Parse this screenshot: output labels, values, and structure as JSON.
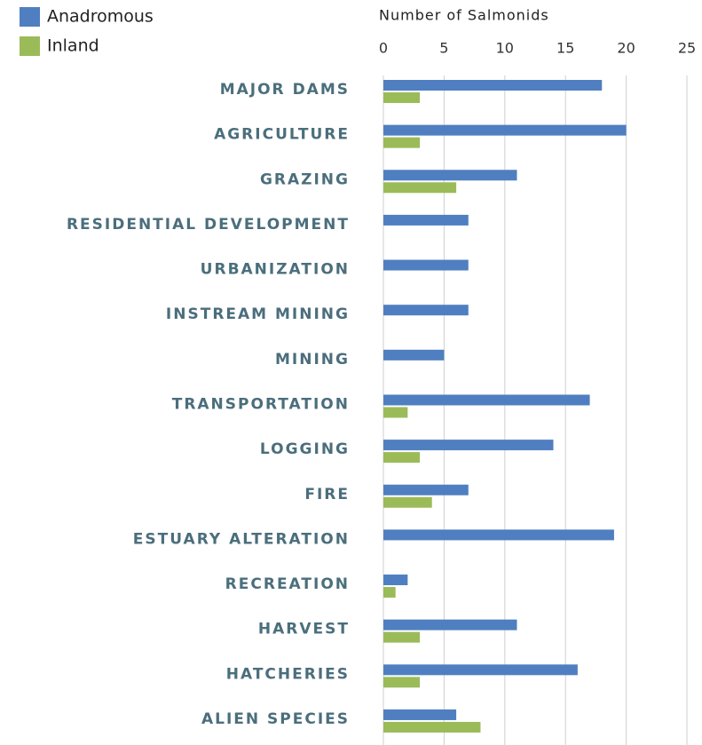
{
  "chart_data": {
    "type": "hbar",
    "xlabel": "Number of Salmonids",
    "categories": [
      "MAJOR DAMS",
      "AGRICULTURE",
      "GRAZING",
      "RESIDENTIAL DEVELOPMENT",
      "URBANIZATION",
      "INSTREAM MINING",
      "MINING",
      "TRANSPORTATION",
      "LOGGING",
      "FIRE",
      "ESTUARY ALTERATION",
      "RECREATION",
      "HARVEST",
      "HATCHERIES",
      "ALIEN SPECIES"
    ],
    "series": [
      {
        "name": "Anadromous",
        "color": "#4f7fc0",
        "values": [
          18,
          20,
          11,
          7,
          7,
          7,
          5,
          17,
          14,
          7,
          19,
          2,
          11,
          16,
          6
        ]
      },
      {
        "name": "Inland",
        "color": "#9bbb59",
        "values": [
          3,
          3,
          6,
          0,
          0,
          0,
          0,
          2,
          3,
          4,
          0,
          1,
          3,
          3,
          8
        ]
      }
    ],
    "xlim": [
      0,
      25
    ],
    "xticks": [
      0,
      5,
      10,
      15,
      20,
      25
    ],
    "grid": true
  }
}
